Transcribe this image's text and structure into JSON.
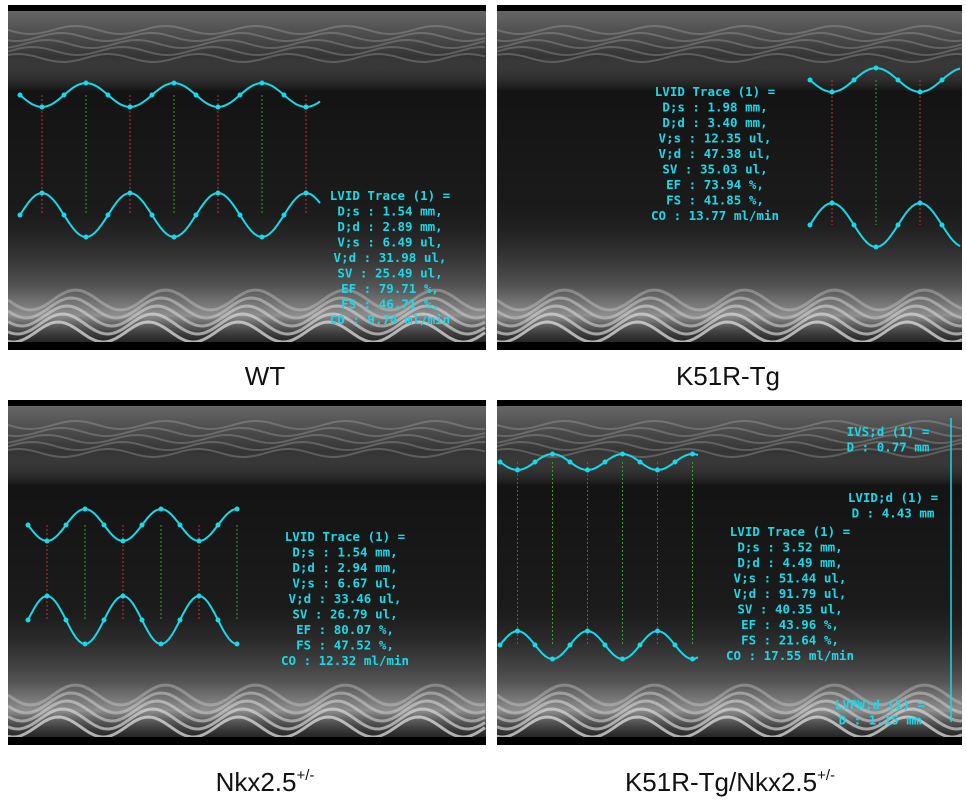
{
  "panels": [
    {
      "label": "WT",
      "lines": [
        "LVID Trace (1) =",
        "D;s : 1.54 mm,",
        "D;d : 2.89 mm,",
        "V;s : 6.49 ul,",
        "V;d : 31.98 ul,",
        "SV : 25.49 ul,",
        "EF : 79.71 %,",
        "FS : 46.71 %,",
        "CO : 9.74 ml/min"
      ]
    },
    {
      "label": "K51R-Tg",
      "lines": [
        "LVID Trace (1) =",
        "D;s : 1.98 mm,",
        "D;d : 3.40 mm,",
        "V;s : 12.35 ul,",
        "V;d : 47.38 ul,",
        "SV : 35.03 ul,",
        "EF : 73.94 %,",
        "FS : 41.85 %,",
        "CO : 13.77 ml/min"
      ]
    },
    {
      "label": "Nkx2.5",
      "label_sup": "+/-",
      "lines": [
        "LVID Trace (1) =",
        "D;s : 1.54 mm,",
        "D;d : 2.94 mm,",
        "V;s : 6.67 ul,",
        "V;d : 33.46 ul,",
        "SV : 26.79 ul,",
        "EF : 80.07 %,",
        "FS : 47.52 %,",
        "CO : 12.32 ml/min"
      ]
    },
    {
      "label": "K51R-Tg/Nkx2.5",
      "label_sup": "+/-",
      "lines": [
        "LVID Trace (1) =",
        "D;s : 3.52 mm,",
        "D;d : 4.49 mm,",
        "V;s : 51.44 ul,",
        "V;d : 91.79 ul,",
        "SV : 40.35 ul,",
        "EF : 43.96 %,",
        "FS : 21.64 %,",
        "CO : 17.55 ml/min"
      ],
      "annotations": [
        [
          "IVS;d (1) =",
          "D : 0.77 mm"
        ],
        [
          "LVID;d (1) =",
          "D : 4.43 mm"
        ],
        [
          "LVPW;d (1) =",
          "D : 1.15 mm"
        ]
      ]
    }
  ]
}
